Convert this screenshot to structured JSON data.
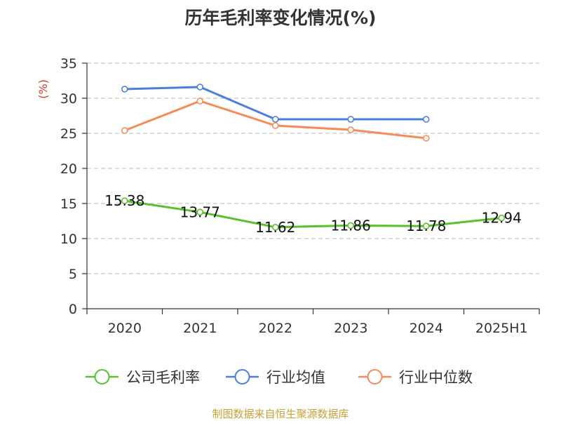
{
  "chart_data": {
    "type": "line",
    "title": "历年毛利率变化情况(%)",
    "ylabel": "(%)",
    "categories": [
      "2020",
      "2021",
      "2022",
      "2023",
      "2024",
      "2025H1"
    ],
    "ylim": [
      0,
      35
    ],
    "yticks": [
      0,
      5,
      10,
      15,
      20,
      25,
      30,
      35
    ],
    "grid": true,
    "legend_position": "bottom",
    "series": [
      {
        "name": "公司毛利率",
        "color": "#5ac02c",
        "values": [
          15.38,
          13.77,
          11.62,
          11.86,
          11.78,
          12.94
        ],
        "labels": [
          "15.38",
          "13.77",
          "11.62",
          "11.86",
          "11.78",
          "12.94"
        ]
      },
      {
        "name": "行业均值",
        "color": "#4a7fdc",
        "values": [
          31.3,
          31.6,
          27.0,
          27.0,
          27.0,
          null
        ]
      },
      {
        "name": "行业中位数",
        "color": "#f58c58",
        "values": [
          25.4,
          29.6,
          26.1,
          25.5,
          24.3,
          null
        ]
      }
    ],
    "ylabel_color": "#d9352d"
  },
  "source": "制图数据来自恒生聚源数据库"
}
